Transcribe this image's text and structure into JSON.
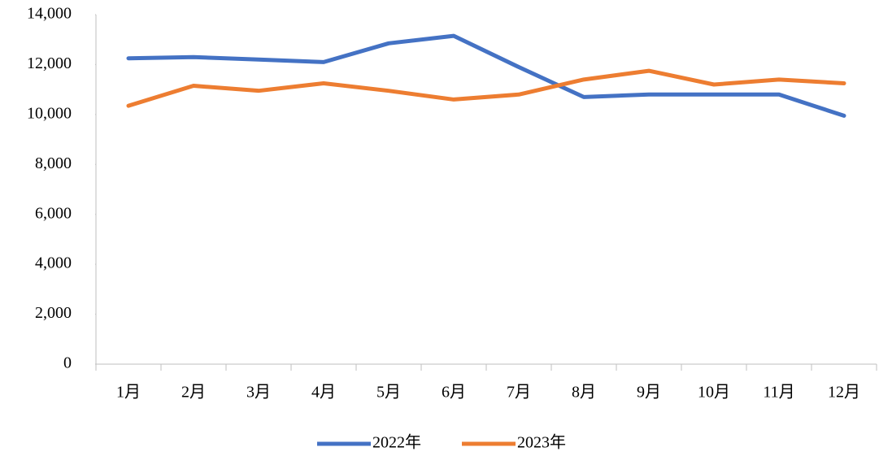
{
  "chart_data": {
    "type": "line",
    "categories": [
      "1月",
      "2月",
      "3月",
      "4月",
      "5月",
      "6月",
      "7月",
      "8月",
      "9月",
      "10月",
      "11月",
      "12月"
    ],
    "series": [
      {
        "name": "2022年",
        "color": "#4472c4",
        "values": [
          12250,
          12300,
          12200,
          12100,
          12850,
          13150,
          11900,
          10700,
          10800,
          10800,
          10800,
          9950
        ]
      },
      {
        "name": "2023年",
        "color": "#ed7d31",
        "values": [
          10350,
          11150,
          10950,
          11250,
          10950,
          10600,
          10800,
          11400,
          11750,
          11200,
          11400,
          11250
        ]
      }
    ],
    "ylim": [
      0,
      14000
    ],
    "yticks": [
      0,
      {
        "value": 2000,
        "label": "2,000"
      },
      {
        "value": 4000,
        "label": "4,000"
      },
      {
        "value": 6000,
        "label": "6,000"
      },
      {
        "value": 8000,
        "label": "8,000"
      },
      {
        "value": 10000,
        "label": "10,000"
      },
      {
        "value": 12000,
        "label": "12,000"
      },
      {
        "value": 14000,
        "label": "14,000"
      }
    ],
    "grid": false
  }
}
